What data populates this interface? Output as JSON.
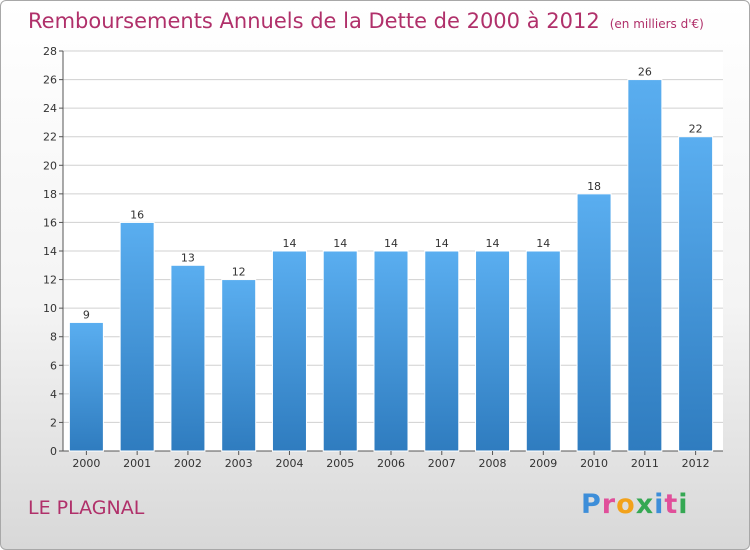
{
  "header": {
    "title": "Remboursements Annuels de la Dette de 2000 à 2012",
    "unit": "(en milliers d'€)"
  },
  "footer": {
    "place": "LE PLAGNAL",
    "logo_letters": [
      "P",
      "r",
      "o",
      "x",
      "i",
      "t",
      "i"
    ],
    "logo_colors": [
      "#3d8ed9",
      "#e04f9a",
      "#f2a21b",
      "#35a853",
      "#3d8ed9",
      "#e04f9a",
      "#35a853"
    ]
  },
  "colors": {
    "bar_top": "#5aaef0",
    "bar_bottom": "#2f7cbf",
    "grid": "#d0d0d0"
  },
  "chart_data": {
    "type": "bar",
    "categories": [
      "2000",
      "2001",
      "2002",
      "2003",
      "2004",
      "2005",
      "2006",
      "2007",
      "2008",
      "2009",
      "2010",
      "2011",
      "2012"
    ],
    "values": [
      9,
      16,
      13,
      12,
      14,
      14,
      14,
      14,
      14,
      14,
      18,
      26,
      22
    ],
    "title": "Remboursements Annuels de la Dette de 2000 à 2012",
    "xlabel": "",
    "ylabel": "",
    "ylim": [
      0,
      28
    ],
    "yticks": [
      0,
      2,
      4,
      6,
      8,
      10,
      12,
      14,
      16,
      18,
      20,
      22,
      24,
      26,
      28
    ],
    "grid": true,
    "data_labels": true
  }
}
